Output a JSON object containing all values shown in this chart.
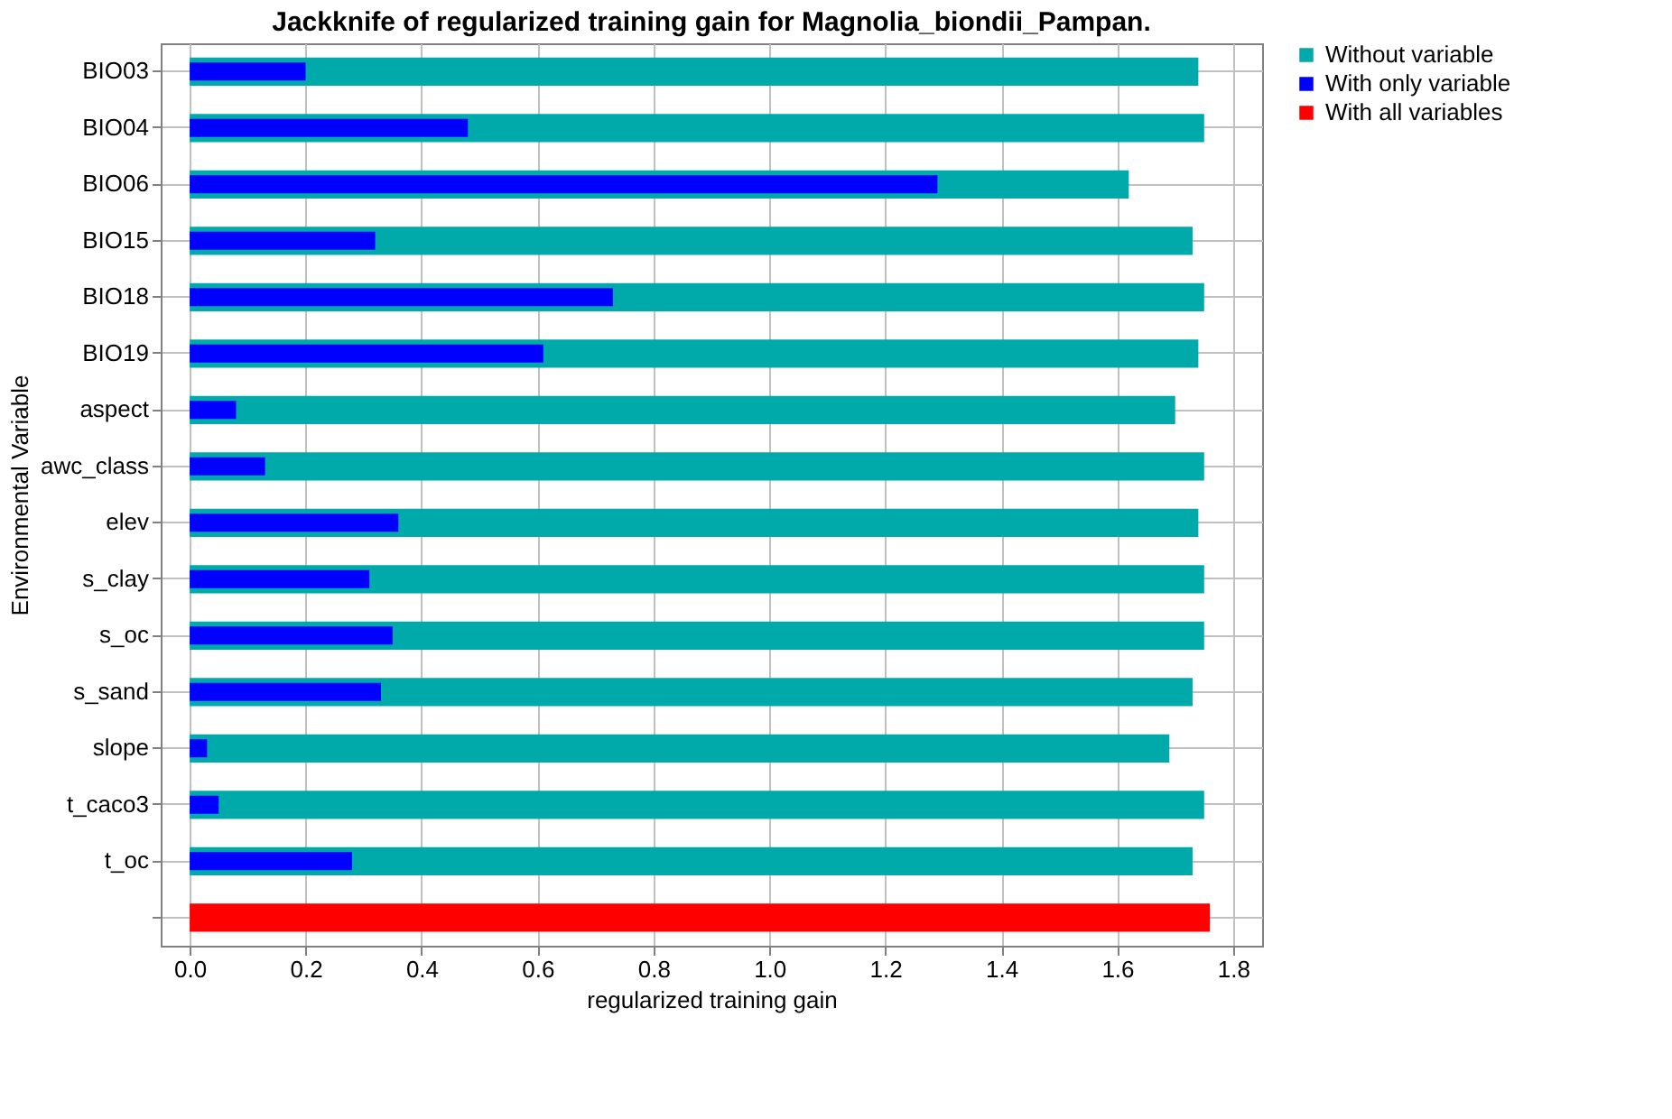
{
  "chart_data": {
    "type": "bar",
    "orientation": "horizontal",
    "title": "Jackknife of regularized training gain for Magnolia_biondii_Pampan.",
    "xlabel": "regularized training gain",
    "ylabel": "Environmental Variable",
    "categories": [
      "BIO03",
      "BIO04",
      "BIO06",
      "BIO15",
      "BIO18",
      "BIO19",
      "aspect",
      "awc_class",
      "elev",
      "s_clay",
      "s_oc",
      "s_sand",
      "slope",
      "t_caco3",
      "t_oc",
      null
    ],
    "series": [
      {
        "name": "Without variable",
        "color": "#00aaaa",
        "values": [
          1.74,
          1.75,
          1.62,
          1.73,
          1.75,
          1.74,
          1.7,
          1.75,
          1.74,
          1.75,
          1.75,
          1.73,
          1.69,
          1.75,
          1.73,
          null
        ]
      },
      {
        "name": "With only variable",
        "color": "#0000ff",
        "values": [
          0.2,
          0.48,
          1.29,
          0.32,
          0.73,
          0.61,
          0.08,
          0.13,
          0.36,
          0.31,
          0.35,
          0.33,
          0.03,
          0.05,
          0.28,
          null
        ]
      },
      {
        "name": "With all variables",
        "color": "#ff0000",
        "values": [
          null,
          null,
          null,
          null,
          null,
          null,
          null,
          null,
          null,
          null,
          null,
          null,
          null,
          null,
          null,
          1.76
        ]
      }
    ],
    "xlim": [
      -0.05,
      1.85
    ],
    "xticks": [
      {
        "value": 0,
        "label": "0.0"
      },
      {
        "value": 0.2,
        "label": "0.2"
      },
      {
        "value": 0.4,
        "label": "0.4"
      },
      {
        "value": 0.6,
        "label": "0.6"
      },
      {
        "value": 0.8,
        "label": "0.8"
      },
      {
        "value": 1.0,
        "label": "1.0"
      },
      {
        "value": 1.2,
        "label": "1.2"
      },
      {
        "value": 1.4,
        "label": "1.4"
      },
      {
        "value": 1.6,
        "label": "1.6"
      },
      {
        "value": 1.8,
        "label": "1.8"
      }
    ],
    "grid": true,
    "legend": "top right"
  }
}
